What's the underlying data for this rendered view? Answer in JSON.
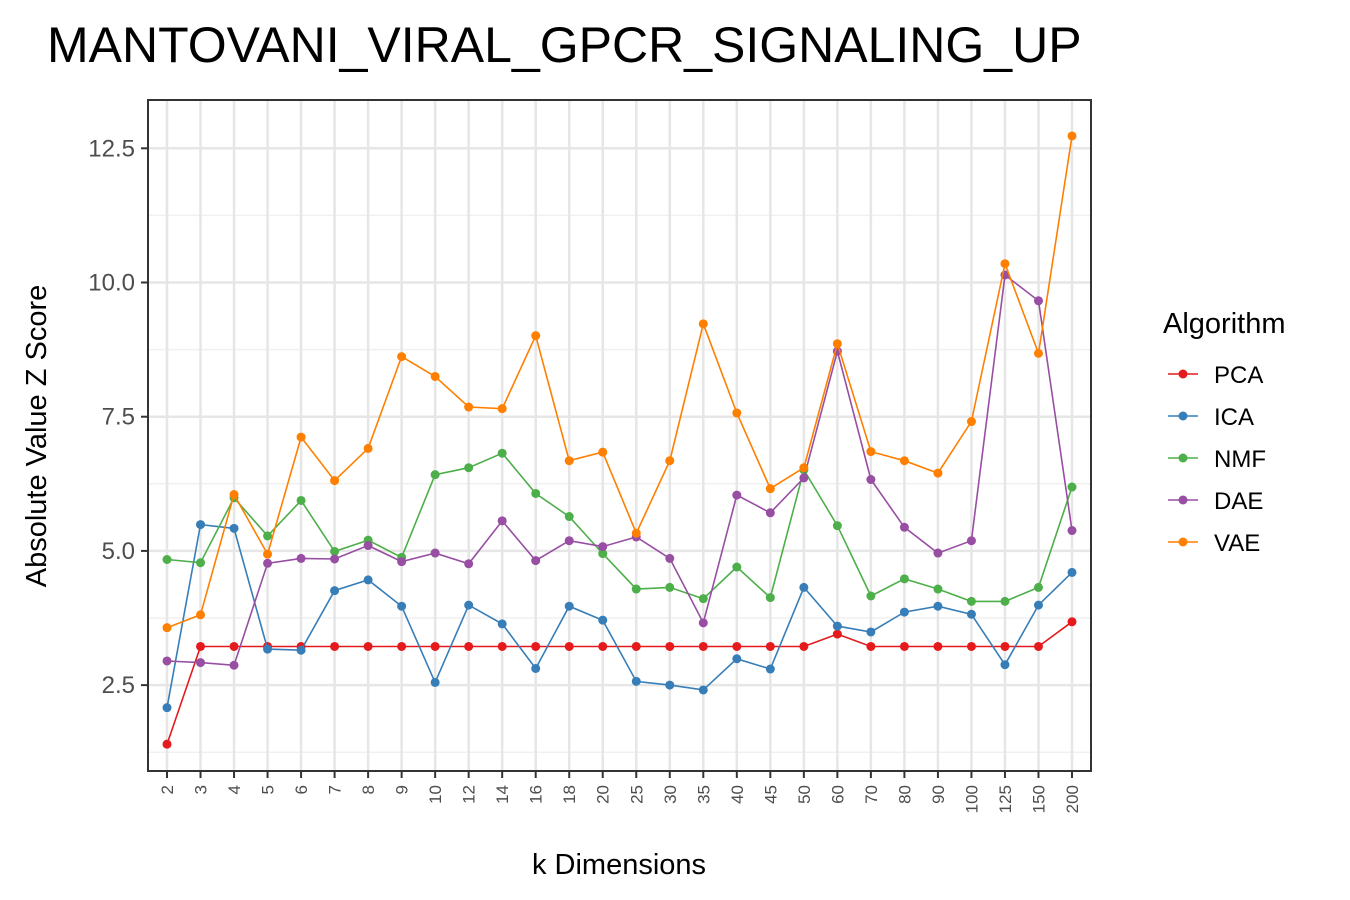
{
  "chart_data": {
    "type": "line",
    "title": "MANTOVANI_VIRAL_GPCR_SIGNALING_UP",
    "xlabel": "k Dimensions",
    "ylabel": "Absolute Value Z Score",
    "categories": [
      "2",
      "3",
      "4",
      "5",
      "6",
      "7",
      "8",
      "9",
      "10",
      "12",
      "14",
      "16",
      "18",
      "20",
      "25",
      "30",
      "35",
      "40",
      "45",
      "50",
      "60",
      "70",
      "80",
      "90",
      "100",
      "125",
      "150",
      "200"
    ],
    "ylim": [
      0.9,
      13.4
    ],
    "yticks": [
      2.5,
      5.0,
      7.5,
      10.0,
      12.5
    ],
    "ytick_labels": [
      "2.5",
      "5.0",
      "7.5",
      "10.0",
      "12.5"
    ],
    "grid": true,
    "legend_title": "Algorithm",
    "legend_position": "right",
    "series": [
      {
        "name": "PCA",
        "color": "#e41a1c",
        "values": [
          1.4,
          3.22,
          3.22,
          3.22,
          3.22,
          3.22,
          3.22,
          3.22,
          3.22,
          3.22,
          3.22,
          3.22,
          3.22,
          3.22,
          3.22,
          3.22,
          3.22,
          3.22,
          3.22,
          3.22,
          3.45,
          3.22,
          3.22,
          3.22,
          3.22,
          3.22,
          3.22,
          3.68
        ]
      },
      {
        "name": "ICA",
        "color": "#377eb8",
        "values": [
          2.08,
          5.49,
          5.42,
          3.17,
          3.15,
          4.26,
          4.46,
          3.97,
          2.55,
          3.99,
          3.64,
          2.81,
          3.97,
          3.71,
          2.57,
          2.5,
          2.41,
          2.99,
          2.8,
          4.32,
          3.6,
          3.49,
          3.86,
          3.97,
          3.82,
          2.88,
          3.99,
          4.6
        ]
      },
      {
        "name": "NMF",
        "color": "#4daf4a",
        "values": [
          4.84,
          4.78,
          5.99,
          5.28,
          5.94,
          4.99,
          5.2,
          4.88,
          6.42,
          6.55,
          6.82,
          6.07,
          5.64,
          4.95,
          4.29,
          4.32,
          4.11,
          4.7,
          4.13,
          6.51,
          5.47,
          4.16,
          4.48,
          4.29,
          4.06,
          4.06,
          4.32,
          6.19
        ]
      },
      {
        "name": "DAE",
        "color": "#984ea3",
        "values": [
          2.95,
          2.92,
          2.87,
          4.77,
          4.86,
          4.85,
          5.1,
          4.8,
          4.96,
          4.76,
          5.56,
          4.82,
          5.19,
          5.08,
          5.26,
          4.86,
          3.66,
          6.04,
          5.71,
          6.36,
          8.72,
          6.33,
          5.44,
          4.96,
          5.19,
          10.14,
          9.66,
          5.38
        ]
      },
      {
        "name": "VAE",
        "color": "#ff7f00",
        "values": [
          3.57,
          3.81,
          6.05,
          4.94,
          7.12,
          6.31,
          6.91,
          8.62,
          8.25,
          7.68,
          7.65,
          9.01,
          6.68,
          6.84,
          5.33,
          6.68,
          9.23,
          7.57,
          6.16,
          6.55,
          8.86,
          6.85,
          6.68,
          6.45,
          7.41,
          10.35,
          8.68,
          12.73
        ]
      }
    ]
  }
}
